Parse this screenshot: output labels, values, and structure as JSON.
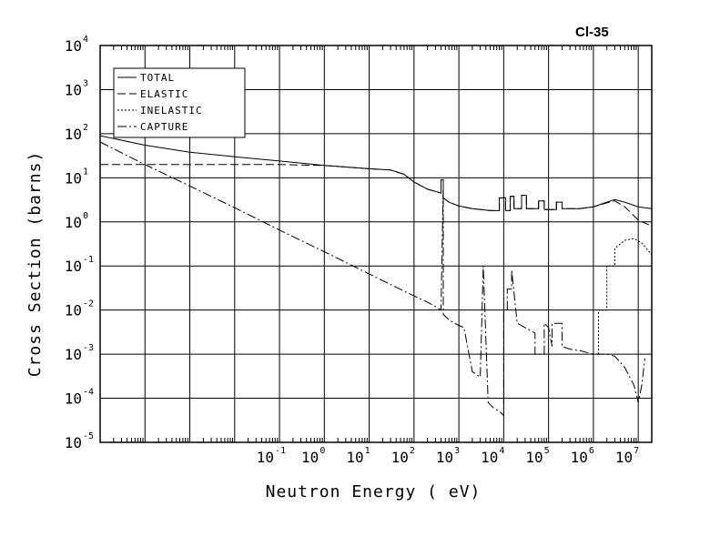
{
  "chart_data": {
    "type": "line",
    "title": "Cl-35",
    "xlabel": "Neutron Energy ( eV)",
    "ylabel": "Cross Section (barns)",
    "x_scale": "log",
    "y_scale": "log",
    "xlim": [
      1e-05,
      20000000
    ],
    "ylim": [
      1e-05,
      10000
    ],
    "grid": true,
    "legend_position": "top-left",
    "x_ticks": [
      {
        "base": "10",
        "exp": "-1",
        "value": 0.1
      },
      {
        "base": "10",
        "exp": "0",
        "value": 1
      },
      {
        "base": "10",
        "exp": "1",
        "value": 10
      },
      {
        "base": "10",
        "exp": "2",
        "value": 100
      },
      {
        "base": "10",
        "exp": "3",
        "value": 1000
      },
      {
        "base": "10",
        "exp": "4",
        "value": 10000
      },
      {
        "base": "10",
        "exp": "5",
        "value": 100000
      },
      {
        "base": "10",
        "exp": "6",
        "value": 1000000
      },
      {
        "base": "10",
        "exp": "7",
        "value": 10000000
      }
    ],
    "y_ticks": [
      {
        "base": "10",
        "exp": "4",
        "value": 10000
      },
      {
        "base": "10",
        "exp": "3",
        "value": 1000
      },
      {
        "base": "10",
        "exp": "2",
        "value": 100
      },
      {
        "base": "10",
        "exp": "1",
        "value": 10
      },
      {
        "base": "10",
        "exp": "0",
        "value": 1
      },
      {
        "base": "10",
        "exp": "-1",
        "value": 0.1
      },
      {
        "base": "10",
        "exp": "-2",
        "value": 0.01
      },
      {
        "base": "10",
        "exp": "-3",
        "value": 0.001
      },
      {
        "base": "10",
        "exp": "-4",
        "value": 0.0001
      },
      {
        "base": "10",
        "exp": "-5",
        "value": 1e-05
      }
    ],
    "series": [
      {
        "name": "TOTAL",
        "style": "solid",
        "x": [
          1e-05,
          0.0001,
          0.001,
          0.01,
          0.1,
          1,
          10,
          30,
          60,
          100,
          200,
          400,
          400,
          450,
          450,
          600,
          1000,
          2000,
          5000,
          8000,
          8000,
          11000,
          11000,
          14000,
          14000,
          17000,
          17000,
          25000,
          25000,
          32000,
          32000,
          60000,
          60000,
          80000,
          80000,
          150000,
          150000,
          200000,
          200000,
          300000,
          500000,
          1000000,
          2000000,
          3000000,
          5000000,
          10000000,
          20000000
        ],
        "y": [
          90,
          55,
          38,
          30,
          24,
          19,
          16,
          15,
          12,
          8,
          5.5,
          4.5,
          9,
          9,
          3.5,
          2.8,
          2.3,
          2,
          1.8,
          1.8,
          3.5,
          3.5,
          1.8,
          1.8,
          3.8,
          3.8,
          2,
          2,
          4,
          4,
          2,
          2,
          3,
          3,
          1.9,
          1.9,
          2.8,
          2.8,
          2,
          2,
          2,
          2.2,
          2.8,
          3.2,
          2.8,
          2.2,
          2
        ]
      },
      {
        "name": "ELASTIC",
        "style": "dash",
        "x": [
          1e-05,
          0.0001,
          0.001,
          0.01,
          0.1,
          1,
          10,
          30,
          60,
          100,
          200,
          400,
          400,
          450,
          450,
          600,
          1000,
          2000,
          5000,
          8000,
          8000,
          11000,
          11000,
          14000,
          14000,
          17000,
          17000,
          25000,
          25000,
          32000,
          32000,
          60000,
          60000,
          80000,
          80000,
          150000,
          150000,
          200000,
          200000,
          300000,
          500000,
          1000000,
          2000000,
          3000000,
          5000000,
          10000000,
          20000000
        ],
        "y": [
          20,
          20,
          20,
          20,
          20,
          19,
          16,
          15,
          12,
          8,
          5.5,
          4.5,
          9,
          9,
          3.5,
          2.8,
          2.3,
          2,
          1.8,
          1.8,
          3.5,
          3.5,
          1.8,
          1.8,
          3.8,
          3.8,
          2,
          2,
          4,
          4,
          2,
          2,
          3,
          3,
          1.9,
          1.9,
          2.8,
          2.8,
          2,
          2,
          2,
          2.2,
          2.7,
          3.0,
          2.2,
          1.1,
          0.8
        ]
      },
      {
        "name": "INELASTIC",
        "style": "dot",
        "x": [
          1300000,
          1300000,
          2000000,
          2000000,
          3000000,
          3000000,
          5000000,
          8000000,
          12000000,
          20000000
        ],
        "y": [
          0.001,
          0.01,
          0.01,
          0.1,
          0.1,
          0.25,
          0.38,
          0.42,
          0.33,
          0.18
        ]
      },
      {
        "name": "CAPTURE",
        "style": "dashdot",
        "x": [
          1e-05,
          0.0001,
          0.001,
          0.01,
          0.1,
          1,
          10,
          30,
          100,
          200,
          300,
          400,
          400,
          450,
          450,
          600,
          800,
          1000,
          1300,
          2000,
          3000,
          3500,
          3500,
          4500,
          4500,
          6000,
          8000,
          10000,
          10000,
          12000,
          12000,
          15000,
          15000,
          20000,
          30000,
          50000,
          50000,
          80000,
          80000,
          100000,
          120000,
          120000,
          200000,
          200000,
          300000,
          500000,
          1000000,
          2000000,
          3000000,
          5000000,
          8000000,
          10000000,
          12000000,
          14000000
        ],
        "y": [
          65,
          20,
          6.5,
          2.1,
          0.65,
          0.21,
          0.066,
          0.038,
          0.021,
          0.015,
          0.012,
          0.01,
          0.01,
          8,
          0.008,
          0.006,
          0.005,
          0.0045,
          0.004,
          0.0004,
          0.0003,
          0.1,
          0.1,
          8e-05,
          8e-05,
          6e-05,
          5e-05,
          4e-05,
          0.01,
          0.01,
          0.03,
          0.03,
          0.08,
          0.005,
          0.004,
          0.003,
          0.001,
          0.001,
          0.005,
          0.004,
          0.0015,
          0.005,
          0.005,
          0.0015,
          0.0013,
          0.0012,
          0.001,
          0.001,
          0.0009,
          0.0005,
          0.0002,
          8e-05,
          0.0002,
          0.0008
        ]
      }
    ]
  }
}
